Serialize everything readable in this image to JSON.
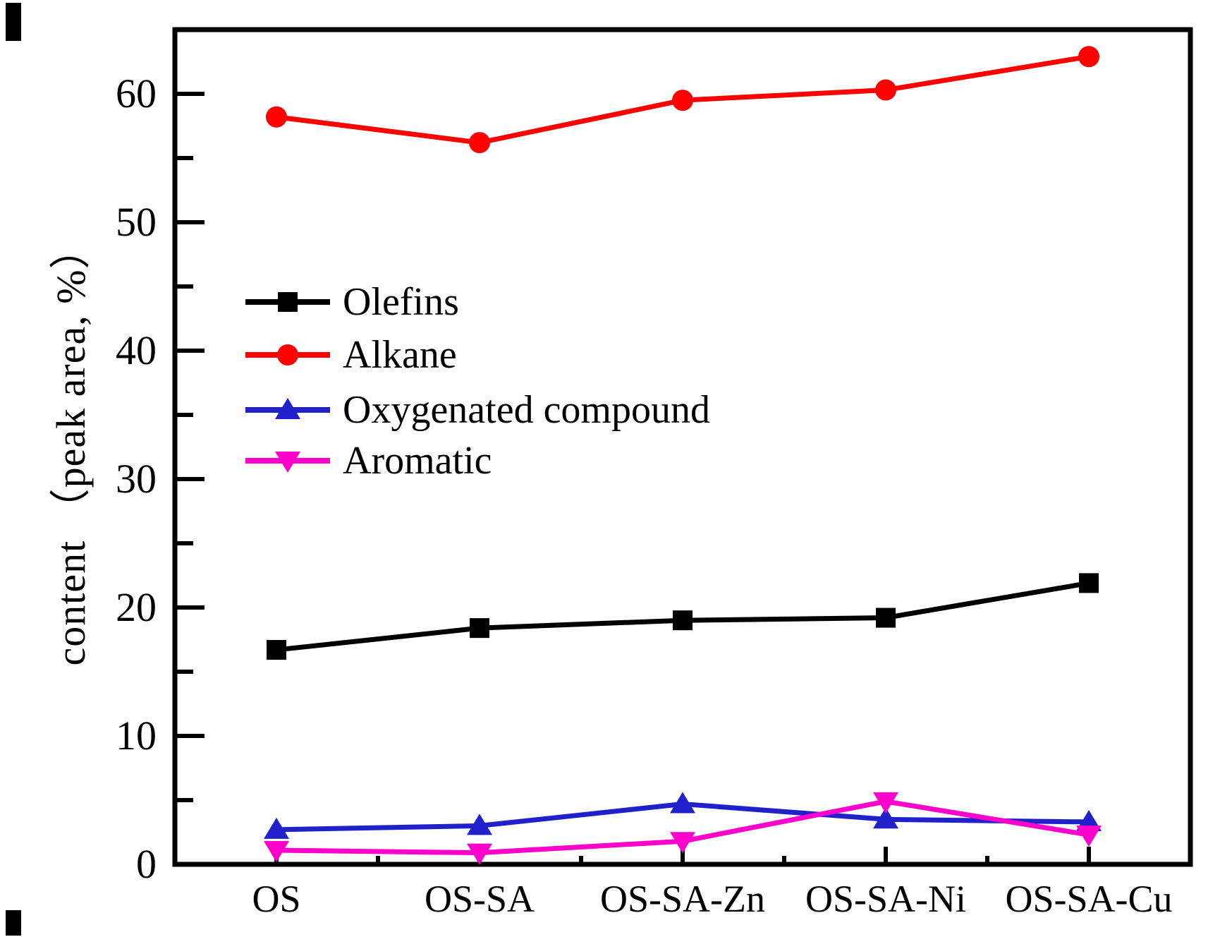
{
  "chart_data": {
    "type": "line",
    "title": "",
    "xlabel": "",
    "ylabel": "content （peak area, %）",
    "ylim": [
      0,
      65
    ],
    "yticks": [
      0,
      10,
      20,
      30,
      40,
      50,
      60
    ],
    "ytick_labels": [
      "0",
      "10",
      "20",
      "30",
      "40",
      "50",
      "60"
    ],
    "minor_ytick_step": 5,
    "grid": false,
    "legend_position": "inside-upper-left",
    "categories": [
      "OS",
      "OS-SA",
      "OS-SA-Zn",
      "OS-SA-Ni",
      "OS-SA-Cu"
    ],
    "series": [
      {
        "name": "Olefins",
        "color": "#000000",
        "marker": "square",
        "values": [
          16.7,
          18.4,
          19.0,
          19.2,
          21.9
        ]
      },
      {
        "name": "Alkane",
        "color": "#ff0000",
        "marker": "circle",
        "values": [
          58.2,
          56.2,
          59.5,
          60.3,
          62.9
        ]
      },
      {
        "name": "Oxygenated compound",
        "color": "#2121cc",
        "marker": "triangle-up",
        "values": [
          2.7,
          3.0,
          4.7,
          3.5,
          3.3
        ]
      },
      {
        "name": "Aromatic",
        "color": "#ff00cc",
        "marker": "triangle-down",
        "values": [
          1.1,
          0.9,
          1.8,
          4.9,
          2.3
        ]
      }
    ]
  }
}
